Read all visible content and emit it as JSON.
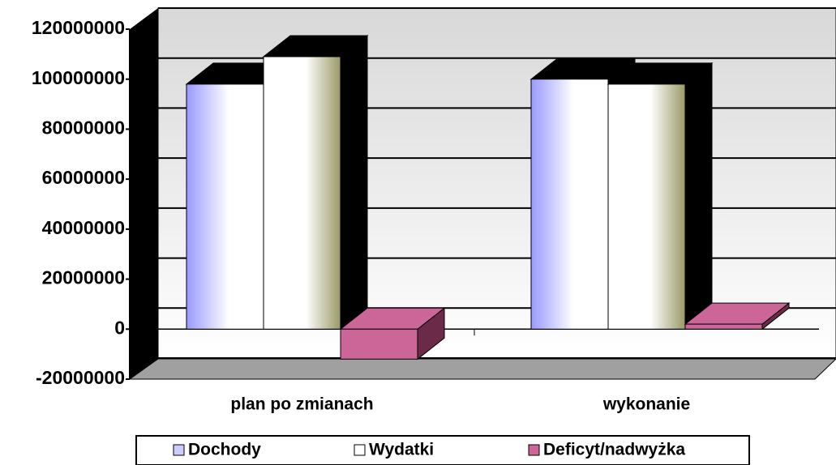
{
  "chart_data": {
    "type": "bar3d",
    "categories": [
      "plan po zmianach",
      "wykonanie"
    ],
    "series": [
      {
        "name": "Dochody",
        "color": "#9999ff",
        "values": [
          98000000,
          100000000
        ]
      },
      {
        "name": "Wydatki",
        "color": "#999966",
        "values": [
          109000000,
          98000000
        ]
      },
      {
        "name": "Deficyt/nadwyżka",
        "color": "#cc6699",
        "values": [
          -12000000,
          2000000
        ]
      }
    ],
    "ylim": [
      -20000000,
      120000000
    ],
    "yticks": [
      -20000000,
      0,
      20000000,
      40000000,
      60000000,
      80000000,
      100000000,
      120000000
    ],
    "grid": true,
    "legend": "bottom"
  }
}
